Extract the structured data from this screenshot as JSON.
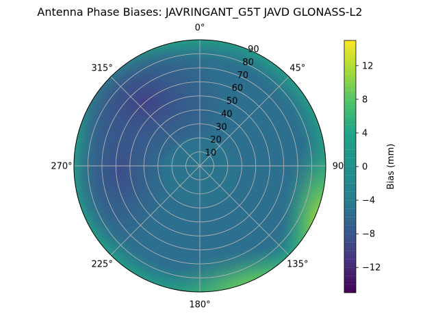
{
  "chart_data": {
    "type": "heatmap",
    "title": "Antenna Phase Biases: JAVRINGANT_G5T  JAVD GLONASS-L2",
    "projection": "polar",
    "theta_direction": "clockwise",
    "theta_zero": "top",
    "theta_ticks": [
      "0°",
      "45°",
      "90",
      "135°",
      "180°",
      "225°",
      "270°",
      "315°"
    ],
    "radial_ticks": [
      "10",
      "20",
      "30",
      "40",
      "50",
      "60",
      "70",
      "80",
      "90"
    ],
    "radial_range": [
      0,
      90
    ],
    "grid": true,
    "colorbar": {
      "label": "Bias (mm)",
      "range": [
        -15,
        15
      ],
      "ticks": [
        "−12",
        "−8",
        "−4",
        "0",
        "4",
        "8",
        "12"
      ],
      "tick_values": [
        -12,
        -8,
        -4,
        0,
        4,
        8,
        12
      ],
      "colormap": "viridis"
    },
    "bias_field_samples": [
      {
        "azimuth_deg": 0,
        "zenith_deg": 45,
        "bias_mm": -5
      },
      {
        "azimuth_deg": 315,
        "zenith_deg": 60,
        "bias_mm": -8
      },
      {
        "azimuth_deg": 300,
        "zenith_deg": 75,
        "bias_mm": -7
      },
      {
        "azimuth_deg": 90,
        "zenith_deg": 60,
        "bias_mm": -3
      },
      {
        "azimuth_deg": 135,
        "zenith_deg": 88,
        "bias_mm": 10
      },
      {
        "azimuth_deg": 180,
        "zenith_deg": 88,
        "bias_mm": 9
      },
      {
        "azimuth_deg": 225,
        "zenith_deg": 70,
        "bias_mm": -1
      },
      {
        "azimuth_deg": 180,
        "zenith_deg": 30,
        "bias_mm": -2
      },
      {
        "azimuth_deg": 0,
        "zenith_deg": 5,
        "bias_mm": -3
      }
    ]
  }
}
